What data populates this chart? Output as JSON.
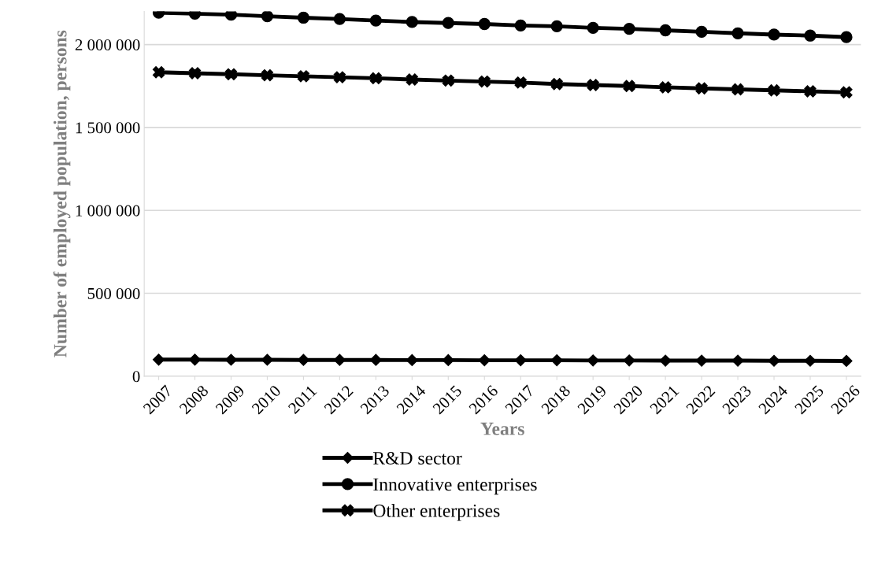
{
  "chart_data": {
    "type": "line",
    "xlabel": "Years",
    "ylabel": "Number of employed population, persons",
    "categories": [
      "2007",
      "2008",
      "2009",
      "2010",
      "2011",
      "2012",
      "2013",
      "2014",
      "2015",
      "2016",
      "2017",
      "2018",
      "2019",
      "2020",
      "2021",
      "2022",
      "2023",
      "2024",
      "2025",
      "2026"
    ],
    "series": [
      {
        "name": "R&D sector",
        "color": "#000000",
        "marker": "diamond",
        "values": [
          100000,
          100000,
          99000,
          99000,
          98000,
          98000,
          98000,
          97000,
          97000,
          96000,
          96000,
          96000,
          95000,
          95000,
          94000,
          94000,
          94000,
          93000,
          93000,
          92000
        ]
      },
      {
        "name": "Innovative enterprises",
        "color": "#000000",
        "marker": "circle",
        "values": [
          2192000,
          2186000,
          2180000,
          2171000,
          2162000,
          2154000,
          2145000,
          2136000,
          2130000,
          2124000,
          2115000,
          2110000,
          2101000,
          2095000,
          2086000,
          2077000,
          2068000,
          2060000,
          2054000,
          2045000
        ]
      },
      {
        "name": "Other enterprises",
        "color": "#000000",
        "marker": "cross",
        "values": [
          1833000,
          1827000,
          1821000,
          1815000,
          1809000,
          1803000,
          1797000,
          1789000,
          1783000,
          1777000,
          1771000,
          1762000,
          1756000,
          1750000,
          1742000,
          1736000,
          1730000,
          1724000,
          1718000,
          1712000
        ]
      }
    ],
    "ylim": [
      0,
      2200000
    ],
    "yticks": [
      0,
      {
        "value": 500000,
        "label": "500 000"
      },
      {
        "value": 1000000,
        "label": "1 000 000"
      },
      {
        "value": 1500000,
        "label": "1 500 000"
      },
      {
        "value": 2000000,
        "label": "2 000 000"
      }
    ],
    "grid": "y",
    "legend": "bottom",
    "line_style": "solid"
  }
}
